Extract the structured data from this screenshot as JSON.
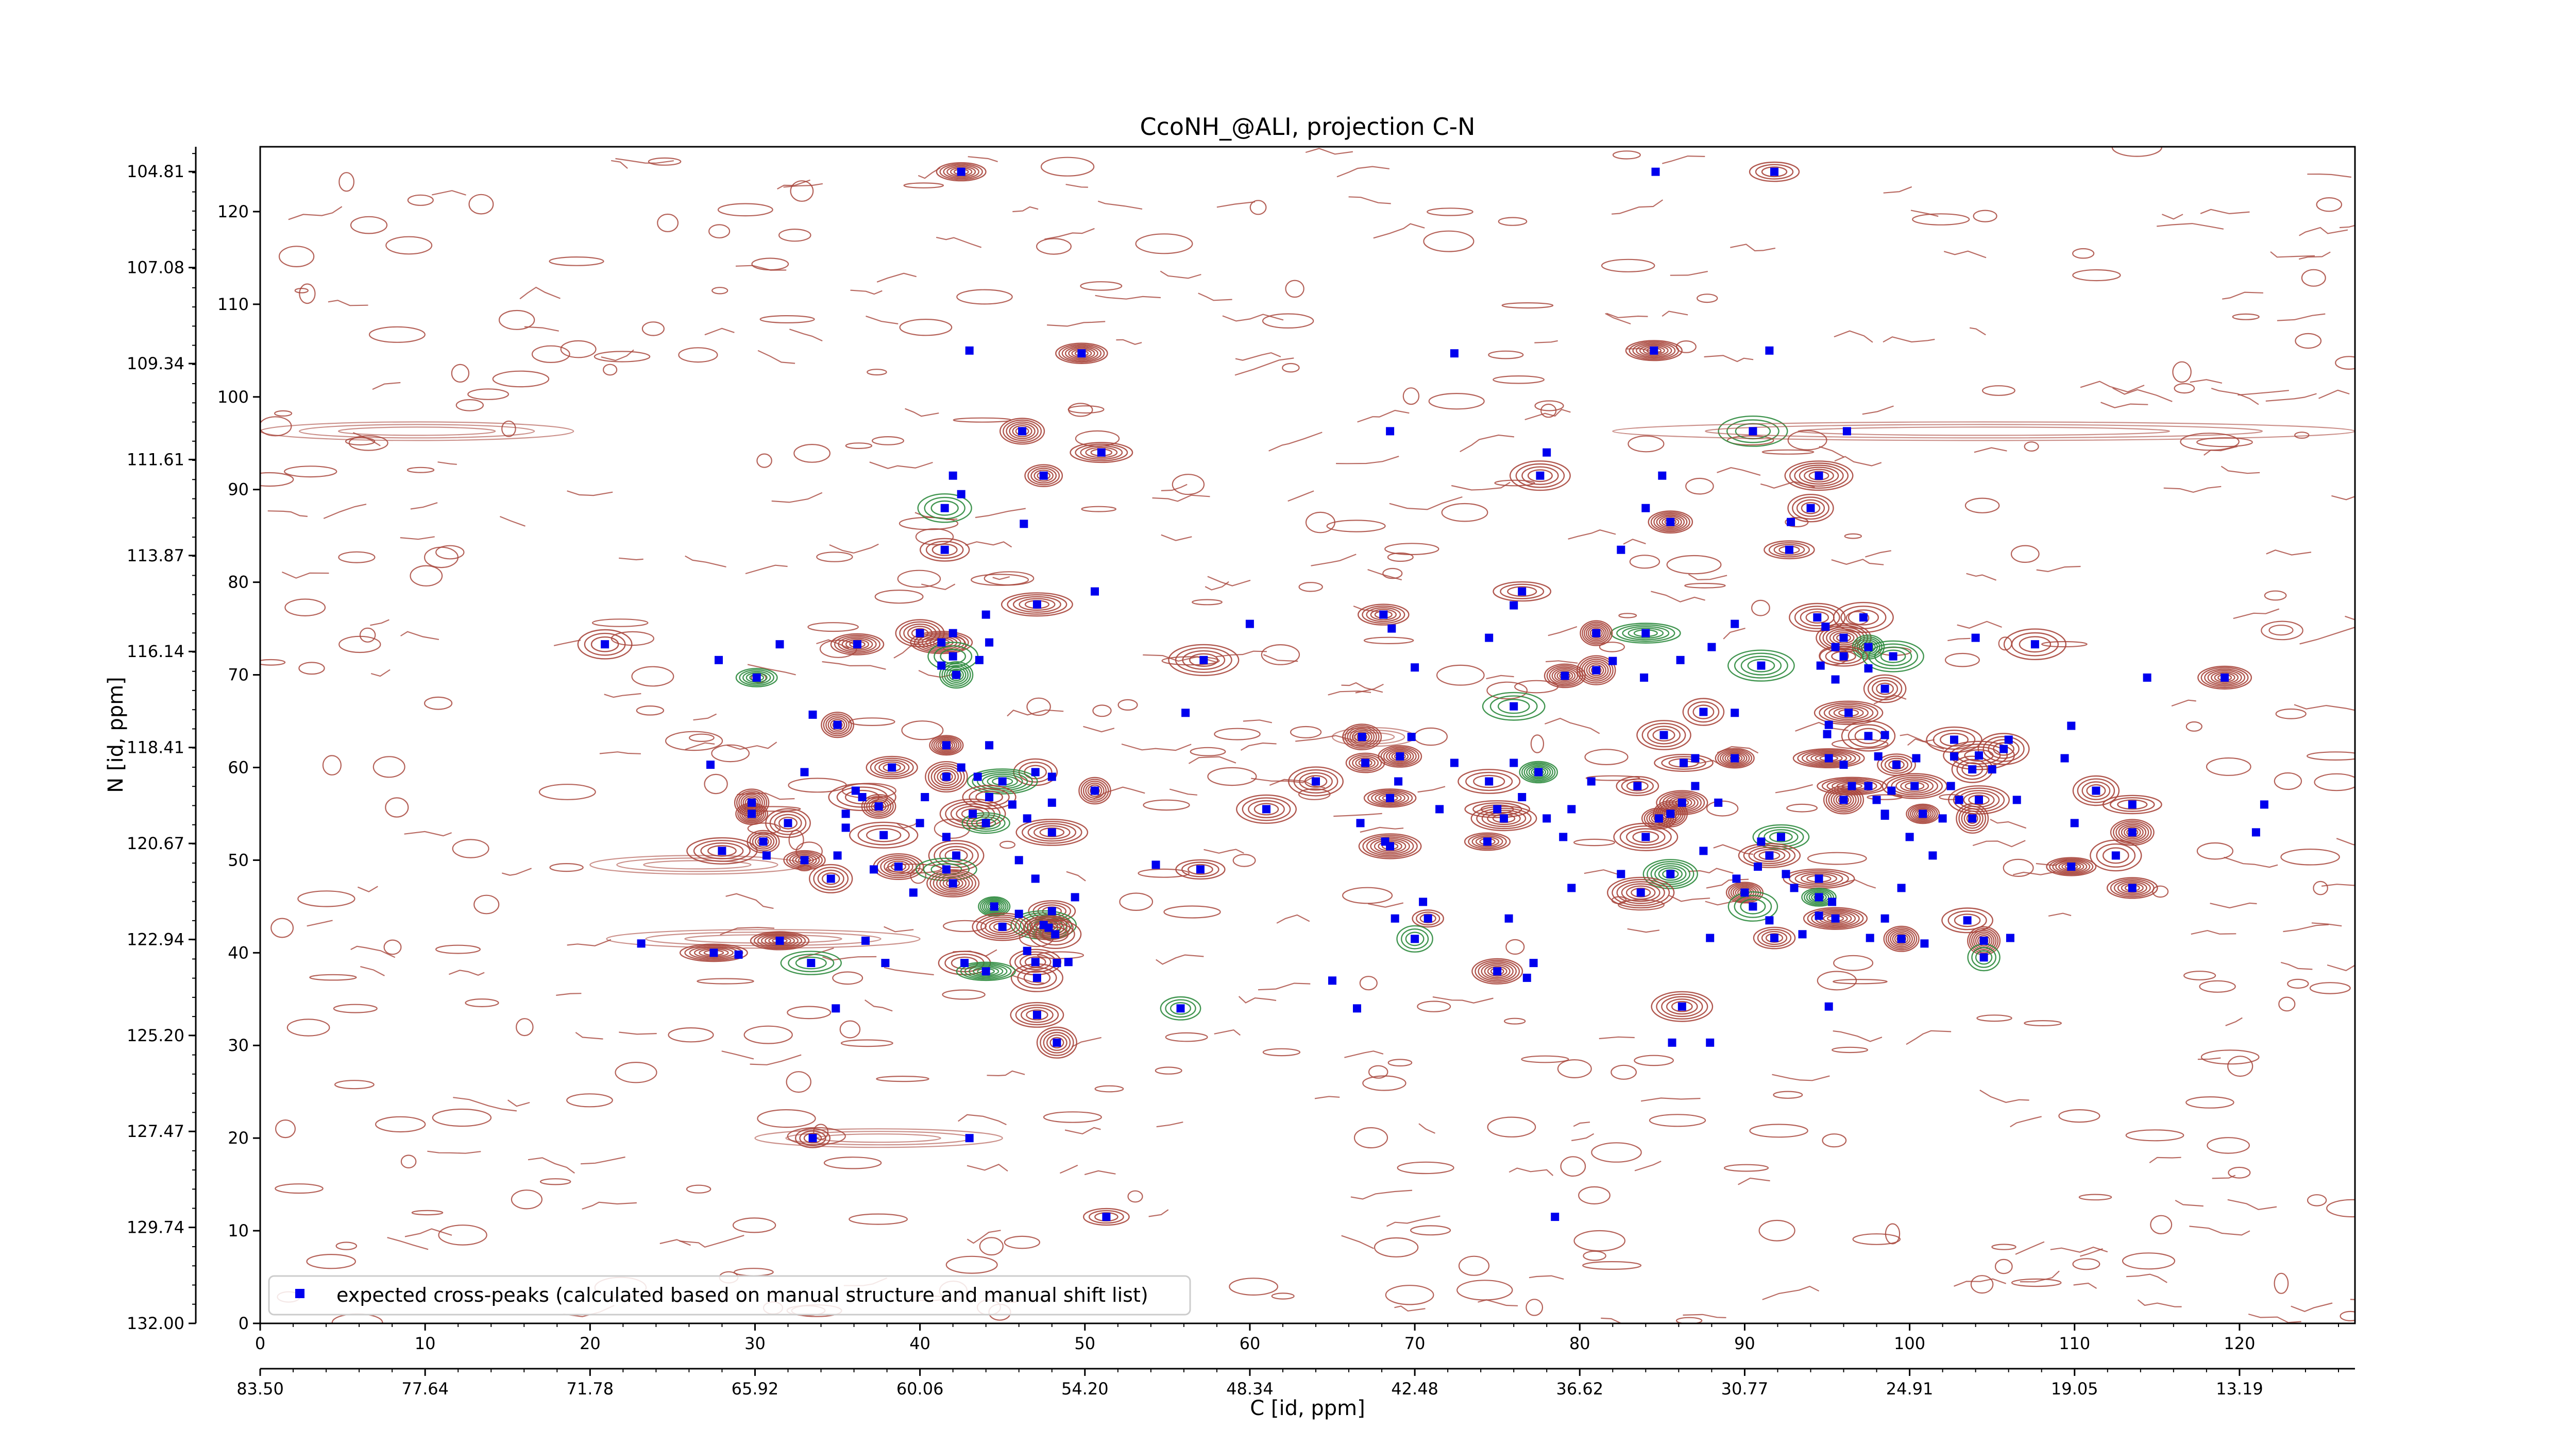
{
  "chart_data": {
    "type": "scatter",
    "title": "CcoNH_@ALI, projection C-N",
    "xlabel": "C [id, ppm]",
    "ylabel": "N [id, ppm]",
    "xlim": [
      0,
      127
    ],
    "ylim": [
      0,
      127
    ],
    "x_ticks": [
      0,
      10,
      20,
      30,
      40,
      50,
      60,
      70,
      80,
      90,
      100,
      110,
      120
    ],
    "y_ticks": [
      0,
      10,
      20,
      30,
      40,
      50,
      60,
      70,
      80,
      90,
      100,
      110,
      120
    ],
    "secondary_x_ticks": {
      "positions": [
        0,
        10,
        20,
        30,
        40,
        50,
        60,
        70,
        80,
        90,
        100,
        110,
        120
      ],
      "labels": [
        "83.50",
        "77.64",
        "71.78",
        "65.92",
        "60.06",
        "54.20",
        "48.34",
        "42.48",
        "36.62",
        "30.77",
        "24.91",
        "19.05",
        "13.19"
      ]
    },
    "secondary_y_ticks": {
      "positions": [
        0,
        10.36,
        20.72,
        31.08,
        41.44,
        51.8,
        62.16,
        72.52,
        82.88,
        93.24,
        103.6,
        113.96,
        124.32
      ],
      "labels": [
        "132.00",
        "129.74",
        "127.47",
        "125.20",
        "122.94",
        "120.67",
        "118.41",
        "116.14",
        "113.87",
        "111.61",
        "109.34",
        "107.08",
        "104.81"
      ]
    },
    "legend": {
      "label": "expected cross-peaks (calculated based on manual structure and manual shift list)",
      "position": "lower-left"
    },
    "colors": {
      "contour_positive": "#a8463c",
      "contour_negative": "#2e8b3e",
      "marker": "#0000ee"
    },
    "series": [
      {
        "name": "expected cross-peaks (calculated based on manual structure and manual shift list)",
        "color": "#0000ee",
        "points": [
          [
            42.5,
            124.3
          ],
          [
            84.6,
            124.3
          ],
          [
            91.8,
            124.3
          ],
          [
            43,
            105
          ],
          [
            84.5,
            105
          ],
          [
            91.5,
            105
          ],
          [
            49.8,
            104.7
          ],
          [
            72.4,
            104.7
          ],
          [
            46.2,
            96.3
          ],
          [
            68.5,
            96.3
          ],
          [
            90.5,
            96.3
          ],
          [
            96.2,
            96.3
          ],
          [
            51,
            94
          ],
          [
            78,
            94
          ],
          [
            47.5,
            91.5
          ],
          [
            42,
            91.5
          ],
          [
            77.6,
            91.5
          ],
          [
            85,
            91.5
          ],
          [
            94.5,
            91.5
          ],
          [
            42.5,
            89.5
          ],
          [
            41.5,
            88
          ],
          [
            84,
            88
          ],
          [
            94,
            88
          ],
          [
            92.8,
            86.5
          ],
          [
            85.5,
            86.5
          ],
          [
            46.3,
            86.3
          ],
          [
            41.5,
            83.5
          ],
          [
            82.5,
            83.5
          ],
          [
            92.7,
            83.5
          ],
          [
            50.6,
            79
          ],
          [
            76.5,
            79
          ],
          [
            76,
            77.5
          ],
          [
            47.1,
            77.6
          ],
          [
            60,
            75.5
          ],
          [
            40,
            74.5
          ],
          [
            42,
            74.5
          ],
          [
            68.1,
            76.5
          ],
          [
            68.6,
            75
          ],
          [
            94.4,
            76.2
          ],
          [
            94.9,
            75.2
          ],
          [
            97.2,
            76.2
          ],
          [
            44,
            76.5
          ],
          [
            84,
            74.5
          ],
          [
            74.5,
            74
          ],
          [
            81,
            74.5
          ],
          [
            89.4,
            75.5
          ],
          [
            41.3,
            73.5
          ],
          [
            44.2,
            73.5
          ],
          [
            96,
            74
          ],
          [
            95.5,
            73
          ],
          [
            97.5,
            73
          ],
          [
            104,
            74
          ],
          [
            42,
            72
          ],
          [
            43.6,
            71.6
          ],
          [
            20.9,
            73.3
          ],
          [
            31.5,
            73.3
          ],
          [
            36.2,
            73.3
          ],
          [
            88,
            73
          ],
          [
            107.6,
            73.3
          ],
          [
            27.8,
            71.6
          ],
          [
            57.2,
            71.6
          ],
          [
            86.1,
            71.6
          ],
          [
            96,
            72
          ],
          [
            94.6,
            71
          ],
          [
            91,
            71
          ],
          [
            97.5,
            70.7
          ],
          [
            99,
            72
          ],
          [
            95.5,
            69.5
          ],
          [
            79.1,
            69.9
          ],
          [
            41.3,
            71
          ],
          [
            42.2,
            70
          ],
          [
            70,
            70.8
          ],
          [
            81,
            70.5
          ],
          [
            82,
            71.5
          ],
          [
            30.1,
            69.7
          ],
          [
            114.4,
            69.7
          ],
          [
            119.1,
            69.7
          ],
          [
            83.9,
            69.7
          ],
          [
            98.5,
            68.5
          ],
          [
            33.5,
            65.7
          ],
          [
            35,
            64.6
          ],
          [
            56.1,
            65.9
          ],
          [
            76,
            66.6
          ],
          [
            95.1,
            64.6
          ],
          [
            87.5,
            66
          ],
          [
            89.4,
            65.9
          ],
          [
            96.3,
            65.9
          ],
          [
            109.8,
            64.5
          ],
          [
            66.8,
            63.3
          ],
          [
            69.8,
            63.3
          ],
          [
            85.1,
            63.5
          ],
          [
            98.5,
            63.5
          ],
          [
            97.5,
            63.4
          ],
          [
            95,
            63.6
          ],
          [
            102.7,
            63
          ],
          [
            106,
            63
          ],
          [
            105.7,
            62
          ],
          [
            44.2,
            62.4
          ],
          [
            41.6,
            62.4
          ],
          [
            102.7,
            61.2
          ],
          [
            104.2,
            61.3
          ],
          [
            100.4,
            61
          ],
          [
            69.1,
            61.2
          ],
          [
            98.1,
            61.2
          ],
          [
            95.1,
            61
          ],
          [
            109.4,
            61
          ],
          [
            89.4,
            61
          ],
          [
            87,
            61
          ],
          [
            86.3,
            60.5
          ],
          [
            76,
            60.5
          ],
          [
            77.5,
            59.5
          ],
          [
            27.3,
            60.3
          ],
          [
            38.3,
            60
          ],
          [
            33,
            59.5
          ],
          [
            47,
            59.5
          ],
          [
            42.5,
            60
          ],
          [
            67,
            60.5
          ],
          [
            72.4,
            60.5
          ],
          [
            103.8,
            59.8
          ],
          [
            105,
            59.8
          ],
          [
            99.2,
            60.3
          ],
          [
            96,
            60.3
          ],
          [
            41.6,
            59
          ],
          [
            43.5,
            59
          ],
          [
            45,
            58.5
          ],
          [
            48,
            59
          ],
          [
            64,
            58.5
          ],
          [
            69,
            58.5
          ],
          [
            74.5,
            58.5
          ],
          [
            80.7,
            58.5
          ],
          [
            83.5,
            58
          ],
          [
            87,
            58
          ],
          [
            96.5,
            58
          ],
          [
            97.5,
            58
          ],
          [
            100.3,
            58
          ],
          [
            102.5,
            58
          ],
          [
            111.3,
            57.5
          ],
          [
            98.9,
            57.5
          ],
          [
            50.6,
            57.5
          ],
          [
            36.1,
            57.5
          ],
          [
            36.5,
            56.8
          ],
          [
            40.3,
            56.8
          ],
          [
            44.2,
            56.8
          ],
          [
            103,
            56.5
          ],
          [
            104.2,
            56.5
          ],
          [
            106.5,
            56.5
          ],
          [
            96,
            56.5
          ],
          [
            98,
            56.5
          ],
          [
            68.5,
            56.7
          ],
          [
            76.5,
            56.8
          ],
          [
            86.2,
            56.2
          ],
          [
            88.4,
            56.2
          ],
          [
            29.8,
            56.2
          ],
          [
            48,
            56.2
          ],
          [
            37.5,
            55.8
          ],
          [
            45.6,
            56
          ],
          [
            61,
            55.5
          ],
          [
            71.5,
            55.5
          ],
          [
            75,
            55.5
          ],
          [
            79.5,
            55.5
          ],
          [
            85.5,
            55
          ],
          [
            98.5,
            55
          ],
          [
            113.5,
            56
          ],
          [
            121.5,
            56
          ],
          [
            29.8,
            55
          ],
          [
            35.5,
            55
          ],
          [
            43.2,
            55
          ],
          [
            46.5,
            54.5
          ],
          [
            75.4,
            54.5
          ],
          [
            78,
            54.5
          ],
          [
            84.8,
            54.5
          ],
          [
            98.5,
            54.8
          ],
          [
            100.8,
            55
          ],
          [
            102,
            54.5
          ],
          [
            103.8,
            54.5
          ],
          [
            110,
            54
          ],
          [
            32,
            54
          ],
          [
            40,
            54
          ],
          [
            44,
            54
          ],
          [
            35.5,
            53.5
          ],
          [
            48,
            53
          ],
          [
            66.7,
            54
          ],
          [
            113.5,
            53
          ],
          [
            121,
            53
          ],
          [
            37.8,
            52.7
          ],
          [
            41.6,
            52.5
          ],
          [
            30.5,
            52
          ],
          [
            68.2,
            52
          ],
          [
            74.4,
            52
          ],
          [
            79,
            52.5
          ],
          [
            84,
            52.5
          ],
          [
            91,
            52
          ],
          [
            92.2,
            52.5
          ],
          [
            100,
            52.5
          ],
          [
            28,
            51
          ],
          [
            30.7,
            50.5
          ],
          [
            33,
            50
          ],
          [
            35,
            50.5
          ],
          [
            42.2,
            50.5
          ],
          [
            46,
            50
          ],
          [
            68.5,
            51.5
          ],
          [
            87.5,
            51
          ],
          [
            91.5,
            50.5
          ],
          [
            101.4,
            50.5
          ],
          [
            112.5,
            50.5
          ],
          [
            54.3,
            49.5
          ],
          [
            38.7,
            49.3
          ],
          [
            37.2,
            49
          ],
          [
            41.6,
            49
          ],
          [
            90.8,
            49.3
          ],
          [
            109.8,
            49.3
          ],
          [
            82.5,
            48.5
          ],
          [
            85.5,
            48.5
          ],
          [
            92.5,
            48.5
          ],
          [
            34.6,
            48
          ],
          [
            47,
            48
          ],
          [
            57,
            49
          ],
          [
            89.5,
            48
          ],
          [
            94.5,
            48
          ],
          [
            99.5,
            47
          ],
          [
            113.5,
            47
          ],
          [
            79.5,
            47
          ],
          [
            42,
            47.5
          ],
          [
            93,
            47
          ],
          [
            90,
            46.5
          ],
          [
            39.6,
            46.5
          ],
          [
            83.7,
            46.5
          ],
          [
            49.4,
            46
          ],
          [
            94.5,
            46
          ],
          [
            95.3,
            45.5
          ],
          [
            44.5,
            45
          ],
          [
            70.5,
            45.5
          ],
          [
            90.5,
            45
          ],
          [
            94.5,
            44
          ],
          [
            48,
            44.5
          ],
          [
            46,
            44.2
          ],
          [
            95.5,
            43.7
          ],
          [
            98.5,
            43.7
          ],
          [
            103.5,
            43.5
          ],
          [
            68.8,
            43.7
          ],
          [
            70.8,
            43.7
          ],
          [
            75.7,
            43.7
          ],
          [
            47.5,
            43
          ],
          [
            91.5,
            43.5
          ],
          [
            45,
            42.8
          ],
          [
            93.5,
            42
          ],
          [
            47.8,
            42.7
          ],
          [
            87.9,
            41.6
          ],
          [
            91.8,
            41.6
          ],
          [
            97.6,
            41.6
          ],
          [
            99.5,
            41.5
          ],
          [
            106.1,
            41.6
          ],
          [
            70,
            41.5
          ],
          [
            23.1,
            41
          ],
          [
            48.2,
            42
          ],
          [
            36.7,
            41.3
          ],
          [
            31.5,
            41.3
          ],
          [
            46.5,
            40.2
          ],
          [
            104.5,
            41.3
          ],
          [
            100.9,
            41
          ],
          [
            27.5,
            40
          ],
          [
            29,
            39.8
          ],
          [
            42.7,
            38.9
          ],
          [
            37.9,
            38.9
          ],
          [
            33.4,
            38.9
          ],
          [
            48.3,
            38.9
          ],
          [
            104.5,
            39.5
          ],
          [
            49,
            39
          ],
          [
            47,
            39
          ],
          [
            77.2,
            38.9
          ],
          [
            47.1,
            37.3
          ],
          [
            76.8,
            37.3
          ],
          [
            75,
            38
          ],
          [
            65,
            37
          ],
          [
            44,
            38
          ],
          [
            34.9,
            34
          ],
          [
            55.8,
            34
          ],
          [
            66.5,
            34
          ],
          [
            86.2,
            34.2
          ],
          [
            95.1,
            34.2
          ],
          [
            47.1,
            33.3
          ],
          [
            87.9,
            30.3
          ],
          [
            48.3,
            30.3
          ],
          [
            85.6,
            30.3
          ],
          [
            33.5,
            20
          ],
          [
            43,
            20
          ],
          [
            51.3,
            11.5
          ],
          [
            78.5,
            11.5
          ]
        ]
      }
    ]
  }
}
